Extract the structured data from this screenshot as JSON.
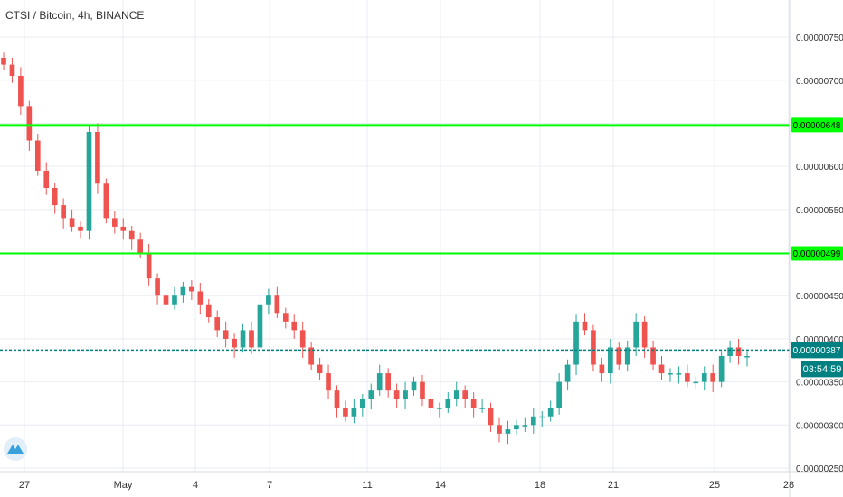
{
  "header": {
    "symbol_title": "CTSI / Bitcoin, 4h, BINANCE"
  },
  "colors": {
    "up": "#26a69a",
    "down": "#ef5350",
    "grid": "#e9edf3",
    "level_line": "#00ff00",
    "current_line": "#008080",
    "axis_text": "#333333",
    "logo_bg": "#e3eff8",
    "logo_fg": "#38a1db"
  },
  "logo": {
    "icon": "tradingview-logo-icon"
  },
  "price_labels": {
    "level_high": "0.00000648",
    "level_low": "0.00000499",
    "current": "0.00000387",
    "countdown": "03:54:59"
  },
  "chart_data": {
    "type": "candlestick",
    "title": "CTSI / Bitcoin, 4h, BINANCE",
    "ylim": [
      2.5e-06,
      7.7e-06
    ],
    "y_ticks": [
      "0.00000750",
      "0.00000700",
      "0.00000650",
      "0.00000600",
      "0.00000550",
      "0.00000500",
      "0.00000450",
      "0.00000400",
      "0.00000350",
      "0.00000300",
      "0.00000250"
    ],
    "x_ticks": [
      "27",
      "May",
      "4",
      "7",
      "11",
      "14",
      "18",
      "21",
      "25",
      "28"
    ],
    "horizontal_levels": [
      6.48e-06,
      4.99e-06
    ],
    "current_price": 3.87e-06,
    "grid": true,
    "close_series": [
      7.18e-06,
      7.05e-06,
      6.7e-06,
      6.3e-06,
      5.95e-06,
      5.75e-06,
      5.55e-06,
      5.4e-06,
      5.3e-06,
      5.25e-06,
      6.4e-06,
      5.8e-06,
      5.4e-06,
      5.3e-06,
      5.25e-06,
      5.15e-06,
      5e-06,
      4.7e-06,
      4.5e-06,
      4.4e-06,
      4.5e-06,
      4.6e-06,
      4.55e-06,
      4.4e-06,
      4.25e-06,
      4.1e-06,
      4e-06,
      3.9e-06,
      4.1e-06,
      3.9e-06,
      4.4e-06,
      4.5e-06,
      4.3e-06,
      4.2e-06,
      4.1e-06,
      3.9e-06,
      3.7e-06,
      3.6e-06,
      3.4e-06,
      3.2e-06,
      3.1e-06,
      3.2e-06,
      3.3e-06,
      3.4e-06,
      3.6e-06,
      3.4e-06,
      3.3e-06,
      3.4e-06,
      3.5e-06,
      3.3e-06,
      3.2e-06,
      3.2e-06,
      3.3e-06,
      3.4e-06,
      3.3e-06,
      3.2e-06,
      3.2e-06,
      3e-06,
      2.9e-06,
      2.95e-06,
      3e-06,
      3e-06,
      3.1e-06,
      3.1e-06,
      3.2e-06,
      3.5e-06,
      3.7e-06,
      4.2e-06,
      4.1e-06,
      3.7e-06,
      3.6e-06,
      3.9e-06,
      3.7e-06,
      3.9e-06,
      4.2e-06,
      3.9e-06,
      3.7e-06,
      3.6e-06,
      3.6e-06,
      3.6e-06,
      3.5e-06,
      3.5e-06,
      3.6e-06,
      3.5e-06,
      3.8e-06,
      3.9e-06,
      3.8e-06,
      3.8e-06
    ]
  }
}
